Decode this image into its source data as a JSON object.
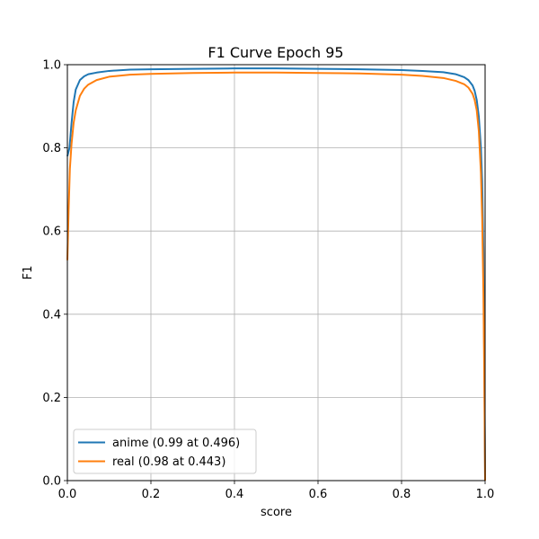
{
  "chart_data": {
    "type": "line",
    "title": "F1 Curve Epoch 95",
    "xlabel": "score",
    "ylabel": "F1",
    "xlim": [
      0,
      1
    ],
    "ylim": [
      0,
      1
    ],
    "xticks": [
      "0.0",
      "0.2",
      "0.4",
      "0.6",
      "0.8",
      "1.0"
    ],
    "yticks": [
      "0.0",
      "0.2",
      "0.4",
      "0.6",
      "0.8",
      "1.0"
    ],
    "grid": true,
    "legend_position": "lower-left",
    "series": [
      {
        "name": "anime (0.99 at 0.496)",
        "color": "#1f77b4",
        "x": [
          0.0,
          0.005,
          0.01,
          0.015,
          0.02,
          0.03,
          0.04,
          0.05,
          0.07,
          0.1,
          0.15,
          0.2,
          0.3,
          0.4,
          0.5,
          0.6,
          0.7,
          0.8,
          0.85,
          0.9,
          0.93,
          0.95,
          0.96,
          0.97,
          0.975,
          0.98,
          0.985,
          0.99,
          0.993,
          0.996,
          0.998,
          1.0
        ],
        "y": [
          0.78,
          0.8,
          0.86,
          0.91,
          0.94,
          0.963,
          0.972,
          0.977,
          0.981,
          0.985,
          0.988,
          0.989,
          0.99,
          0.991,
          0.991,
          0.99,
          0.989,
          0.987,
          0.985,
          0.982,
          0.977,
          0.97,
          0.963,
          0.95,
          0.937,
          0.915,
          0.875,
          0.8,
          0.72,
          0.55,
          0.3,
          0.0
        ]
      },
      {
        "name": "real (0.98 at 0.443)",
        "color": "#ff7f0e",
        "x": [
          0.0,
          0.003,
          0.006,
          0.01,
          0.015,
          0.02,
          0.03,
          0.04,
          0.05,
          0.07,
          0.1,
          0.15,
          0.2,
          0.3,
          0.4,
          0.5,
          0.6,
          0.7,
          0.8,
          0.85,
          0.9,
          0.93,
          0.95,
          0.96,
          0.97,
          0.975,
          0.98,
          0.985,
          0.99,
          0.993,
          0.996,
          0.998,
          1.0
        ],
        "y": [
          0.53,
          0.65,
          0.75,
          0.81,
          0.86,
          0.89,
          0.925,
          0.942,
          0.952,
          0.963,
          0.971,
          0.976,
          0.978,
          0.98,
          0.981,
          0.981,
          0.98,
          0.979,
          0.976,
          0.973,
          0.968,
          0.961,
          0.953,
          0.945,
          0.93,
          0.915,
          0.89,
          0.84,
          0.74,
          0.63,
          0.45,
          0.25,
          0.0
        ]
      }
    ]
  }
}
